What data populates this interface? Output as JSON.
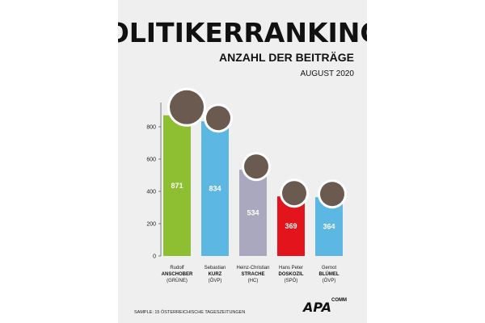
{
  "header": {
    "title": "POLITIKERRANKING",
    "subtitle": "ANZAHL DER BEITRÄGE",
    "month": "AUGUST 2020"
  },
  "footer": {
    "sample_note": "SAMPLE: 15 ÖSTERREICHISCHE TAGESZEITUNGEN",
    "logo_text": "APA",
    "logo_superscript": "COMM"
  },
  "chart_data": {
    "type": "bar",
    "title": "POLITIKERRANKING",
    "subtitle": "ANZAHL DER BEITRÄGE",
    "xlabel": "",
    "ylabel": "",
    "ylim": [
      0,
      900
    ],
    "yticks": [
      0,
      200,
      400,
      600,
      800
    ],
    "grid": false,
    "legend": "none",
    "categories": [
      {
        "first": "Rudolf",
        "last": "ANSCHOBER",
        "party": "(GRÜNE)",
        "color": "#8ebf32"
      },
      {
        "first": "Sebastian",
        "last": "KURZ",
        "party": "(ÖVP)",
        "color": "#5cb8e2"
      },
      {
        "first": "Heinz-Christian",
        "last": "STRACHE",
        "party": "(HC)",
        "color": "#a9a8bf"
      },
      {
        "first": "Hans Peter",
        "last": "DOSKOZIL",
        "party": "(SPÖ)",
        "color": "#e3141c"
      },
      {
        "first": "Gernot",
        "last": "BLÜMEL",
        "party": "(ÖVP)",
        "color": "#5cb8e2"
      }
    ],
    "values": [
      871,
      834,
      534,
      369,
      364
    ]
  }
}
